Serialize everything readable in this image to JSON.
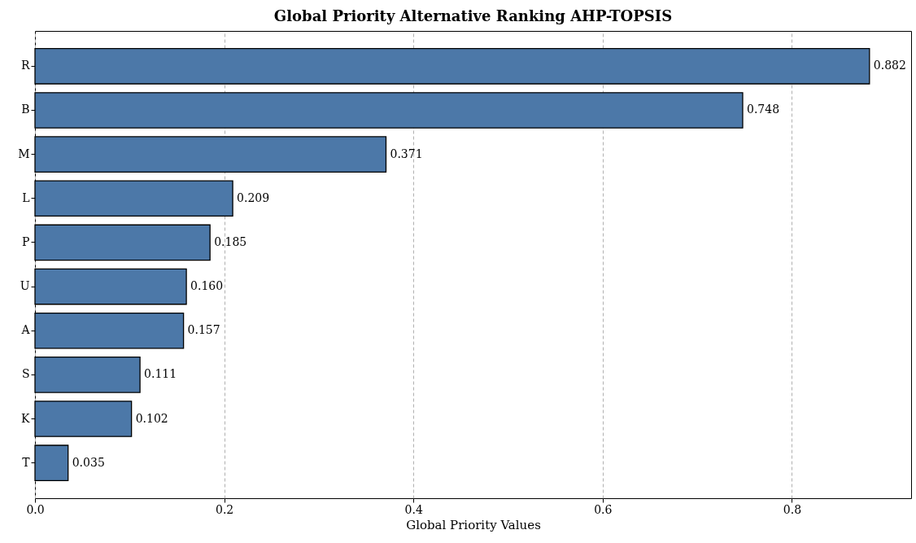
{
  "chart_data": {
    "type": "bar",
    "orientation": "horizontal",
    "title": "Global Priority Alternative Ranking AHP-TOPSIS",
    "xlabel": "Global Priority Values",
    "categories": [
      "R",
      "B",
      "M",
      "L",
      "P",
      "U",
      "A",
      "S",
      "K",
      "T"
    ],
    "values": [
      0.882,
      0.748,
      0.371,
      0.209,
      0.185,
      0.16,
      0.157,
      0.111,
      0.102,
      0.035
    ],
    "color": "#4c78a8",
    "xlim": [
      0,
      0.926
    ],
    "xticks": [
      {
        "value": 0,
        "label": "0.0"
      },
      {
        "value": 0.2,
        "label": "0.2"
      },
      {
        "value": 0.4,
        "label": "0.4"
      },
      {
        "value": 0.6,
        "label": "0.6"
      },
      {
        "value": 0.8,
        "label": "0.8"
      }
    ],
    "grid": "x",
    "value_labels": [
      "0.882",
      "0.748",
      "0.371",
      "0.209",
      "0.185",
      "0.160",
      "0.157",
      "0.111",
      "0.102",
      "0.035"
    ]
  }
}
